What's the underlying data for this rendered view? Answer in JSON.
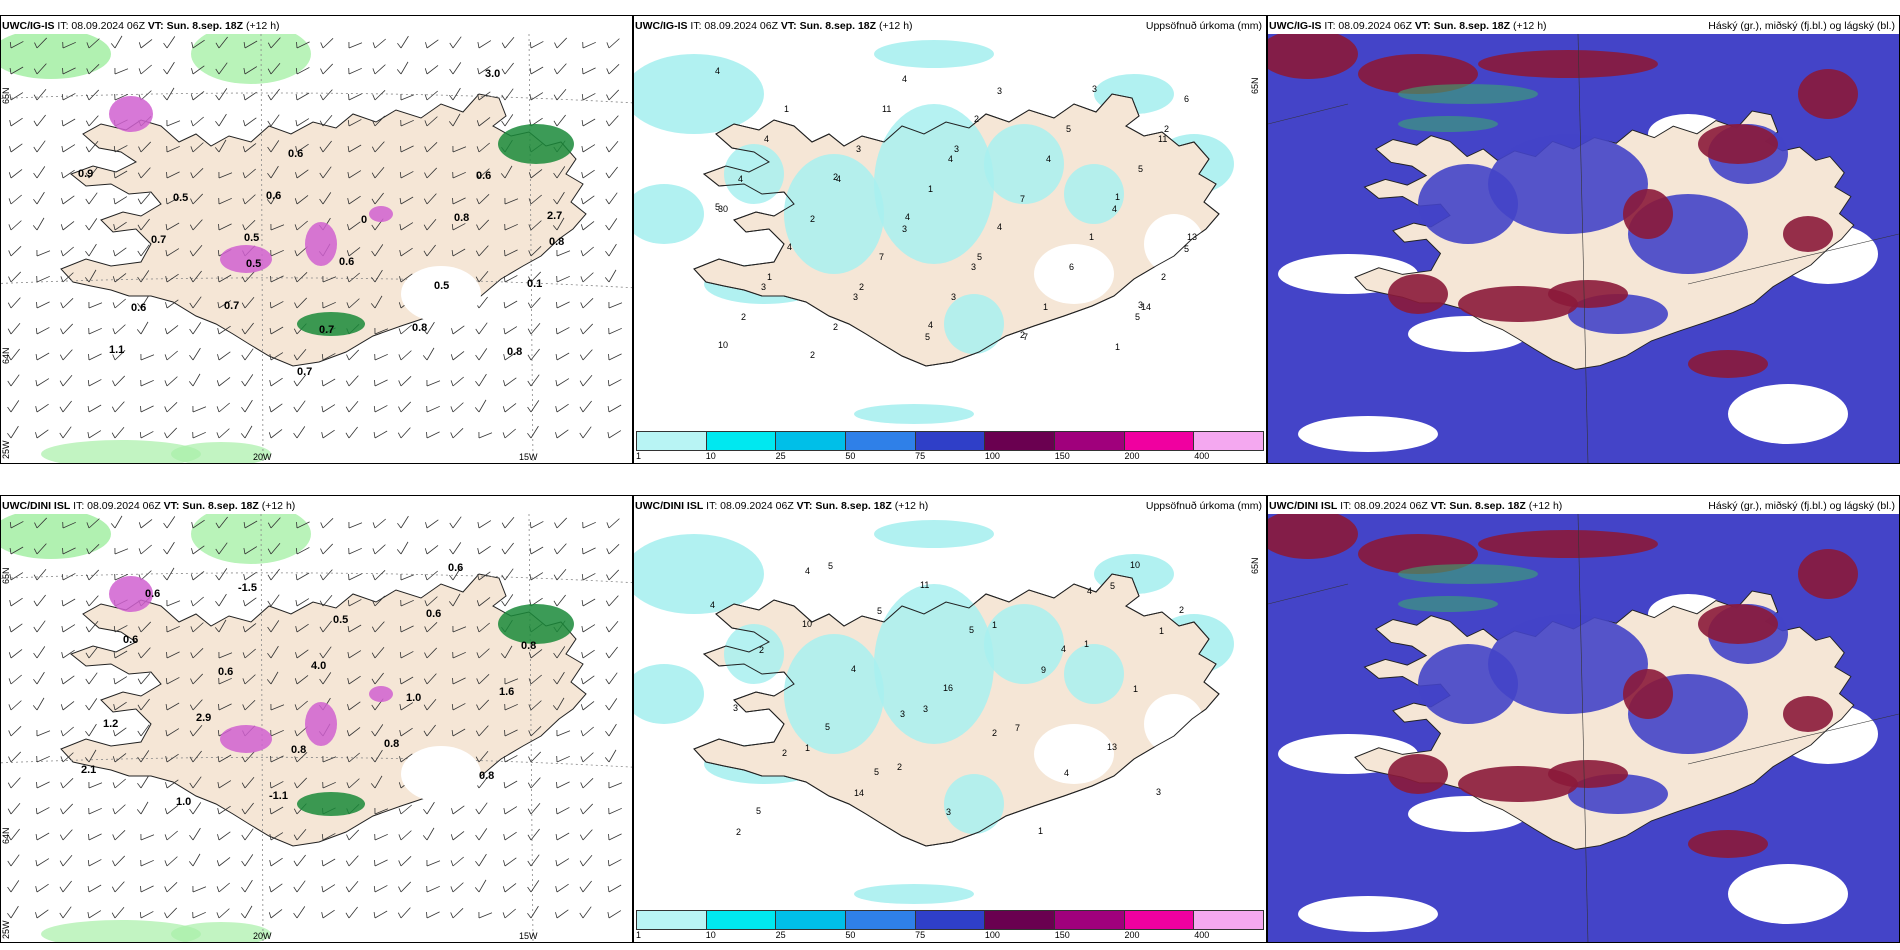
{
  "panels": [
    {
      "model": "UWC/IG-IS",
      "it": "IT: 08.09.2024 06Z",
      "vt_label": "VT:",
      "vt": "Sun. 8.sep. 18Z",
      "lead": "(+12 h)",
      "right_title": "",
      "type": "precip-wind",
      "lons": [
        "20W",
        "15W"
      ],
      "lats": [
        "65N",
        "64N",
        "25W"
      ],
      "labels": [
        "0.6",
        "0.6",
        "0.5",
        "0",
        "0.8",
        "0.5",
        "0.5",
        "0.6",
        "0.7",
        "0.8",
        "0.9",
        "0.6",
        "0.8",
        "0.7",
        "0.6",
        "0.1",
        "0.7",
        "0.8",
        "1.1",
        "0.7",
        "3.0",
        "2.7",
        "0.5"
      ]
    },
    {
      "model": "UWC/IG-IS",
      "it": "IT: 08.09.2024 06Z",
      "vt_label": "VT:",
      "vt": "Sun. 8.sep. 18Z",
      "lead": "(+12 h)",
      "right_title": "Uppsöfnuð úrkoma (mm)",
      "type": "accum",
      "labels": [
        "3",
        "2",
        "2",
        "5",
        "4",
        "1",
        "1",
        "3",
        "11",
        "3",
        "4",
        "1",
        "2",
        "4",
        "6",
        "7",
        "5",
        "3",
        "4",
        "5",
        "10",
        "4",
        "3",
        "4",
        "2",
        "2",
        "3",
        "1",
        "4",
        "5",
        "4",
        "13",
        "11",
        "6",
        "4",
        "3",
        "5",
        "2",
        "7",
        "4",
        "3",
        "5",
        "2",
        "2",
        "4",
        "2",
        "1",
        "1",
        "2",
        "3",
        "5",
        "1",
        "3",
        "14",
        "4",
        "7",
        "30"
      ]
    },
    {
      "model": "UWC/IG-IS",
      "it": "IT: 08.09.2024 06Z",
      "vt_label": "VT:",
      "vt": "Sun. 8.sep. 18Z",
      "lead": "(+12 h)",
      "right_title": "Háský (gr.), miðský (fj.bl.) og lágský (bl.)",
      "type": "cloud",
      "labels": []
    },
    {
      "model": "UWC/DINI ISL",
      "it": "IT: 08.09.2024 06Z",
      "vt_label": "VT:",
      "vt": "Sun. 8.sep. 18Z",
      "lead": "(+12 h)",
      "right_title": "",
      "type": "precip-wind",
      "lons": [
        "20W",
        "15W"
      ],
      "lats": [
        "65N",
        "64N",
        "25W"
      ],
      "labels": [
        "0.6",
        "0.6",
        "0.5",
        "0.8",
        "0.6",
        "1.0",
        "1.2",
        "0.8",
        "0.8",
        "1.0",
        "-1.5",
        "0.6",
        "0.6",
        "4.0",
        "1.6",
        "2.9",
        "0.8",
        "2.1",
        "-1.1"
      ]
    },
    {
      "model": "UWC/DINI ISL",
      "it": "IT: 08.09.2024 06Z",
      "vt_label": "VT:",
      "vt": "Sun. 8.sep. 18Z",
      "lead": "(+12 h)",
      "right_title": "Uppsöfnuð úrkoma (mm)",
      "type": "accum",
      "labels": [
        "4",
        "2",
        "2",
        "5",
        "4",
        "5",
        "16",
        "10",
        "5",
        "3",
        "4",
        "2",
        "5",
        "3",
        "4",
        "1",
        "3",
        "11",
        "13",
        "10",
        "5",
        "4",
        "2",
        "3",
        "1",
        "5",
        "7",
        "4",
        "2",
        "1",
        "1",
        "14",
        "9",
        "2",
        "3",
        "5",
        "1",
        "1"
      ]
    },
    {
      "model": "UWC/DINI ISL",
      "it": "IT: 08.09.2024 06Z",
      "vt_label": "VT:",
      "vt": "Sun. 8.sep. 18Z",
      "lead": "(+12 h)",
      "right_title": "Háský (gr.), miðský (fj.bl.) og lágský (bl.)",
      "type": "cloud",
      "labels": []
    }
  ],
  "colorbar": {
    "ticks": [
      "1",
      "10",
      "25",
      "50",
      "75",
      "100",
      "150",
      "200",
      "400"
    ],
    "colors": [
      "#b8f4f4",
      "#00e8f0",
      "#00bfe8",
      "#2f80e8",
      "#2f3fc8",
      "#6a0050",
      "#a0007c",
      "#f000a0",
      "#f4a8f0"
    ]
  },
  "colors": {
    "land": "#f5e6d6",
    "cyan": "#a8f0f0",
    "green": "#a8f0a8",
    "darkgreen": "#1a8a3a",
    "magenta": "#d060d0",
    "blue": "#4444c8",
    "maroon": "#8b1a3a"
  }
}
